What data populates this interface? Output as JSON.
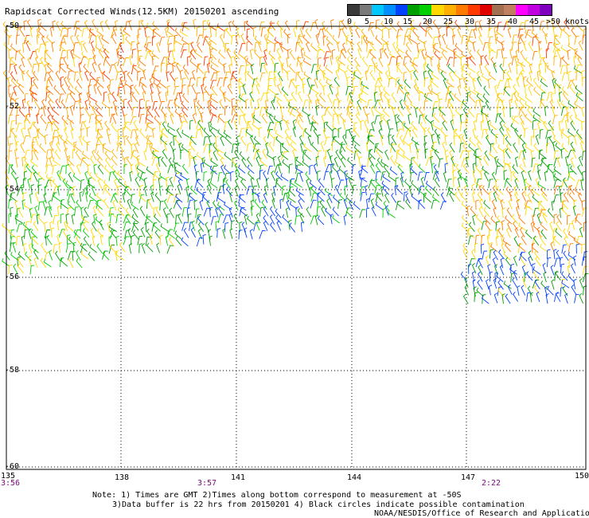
{
  "title": "Rapidscat Corrected Winds(12.5KM) 20150201 ascending",
  "legend": {
    "colors": [
      "#3a3a3a",
      "#7a7a7a",
      "#00c8ff",
      "#0090ff",
      "#0040ff",
      "#00a000",
      "#00d000",
      "#ffd800",
      "#ffb000",
      "#ff7a00",
      "#ff3a00",
      "#e00000",
      "#a07050",
      "#c08060",
      "#ff00ff",
      "#c000e0",
      "#8000c0"
    ],
    "ticks": [
      "0",
      "5",
      "10",
      "15",
      "20",
      "25",
      "30",
      "35",
      "40",
      "45",
      ">50 knots"
    ]
  },
  "latitudes": [
    "-50",
    "-52",
    "-54",
    "-56",
    "-58",
    "-60"
  ],
  "longitudes": [
    "135",
    "138",
    "141",
    "144",
    "147",
    "150"
  ],
  "times": [
    "3:56",
    "3:57",
    "2:22"
  ],
  "notes": [
    "Note: 1) Times are GMT 2)Times along bottom correspond to measurement at -50S",
    "3)Data buffer is 22 hrs from 20150201 4) Black circles indicate possible contamination",
    "NOAA/NESDIS/Office of Research and Applications"
  ]
}
